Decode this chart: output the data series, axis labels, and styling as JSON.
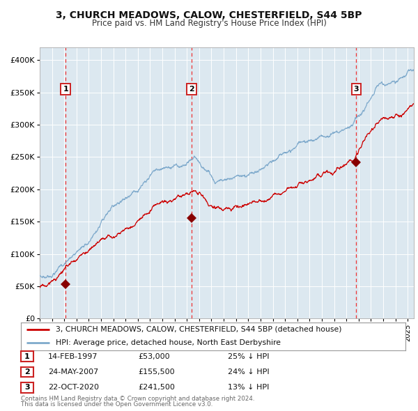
{
  "title1": "3, CHURCH MEADOWS, CALOW, CHESTERFIELD, S44 5BP",
  "title2": "Price paid vs. HM Land Registry's House Price Index (HPI)",
  "bg_color": "#dce8f0",
  "grid_color": "#ffffff",
  "red_line_color": "#cc0000",
  "blue_line_color": "#7faacc",
  "sale_marker_color": "#880000",
  "vline_color": "#ee3333",
  "transactions": [
    {
      "date_num": 1997.12,
      "price": 53000,
      "label": "1"
    },
    {
      "date_num": 2007.39,
      "price": 155500,
      "label": "2"
    },
    {
      "date_num": 2020.81,
      "price": 241500,
      "label": "3"
    }
  ],
  "table_rows": [
    {
      "num": "1",
      "date": "14-FEB-1997",
      "price": "£53,000",
      "pct": "25% ↓ HPI"
    },
    {
      "num": "2",
      "date": "24-MAY-2007",
      "price": "£155,500",
      "pct": "24% ↓ HPI"
    },
    {
      "num": "3",
      "date": "22-OCT-2020",
      "price": "£241,500",
      "pct": "13% ↓ HPI"
    }
  ],
  "footer1": "Contains HM Land Registry data © Crown copyright and database right 2024.",
  "footer2": "This data is licensed under the Open Government Licence v3.0.",
  "legend_line1": "3, CHURCH MEADOWS, CALOW, CHESTERFIELD, S44 5BP (detached house)",
  "legend_line2": "HPI: Average price, detached house, North East Derbyshire",
  "ylim": [
    0,
    420000
  ],
  "xlim_start": 1995.0,
  "xlim_end": 2025.5,
  "yticks": [
    0,
    50000,
    100000,
    150000,
    200000,
    250000,
    300000,
    350000,
    400000
  ],
  "ytick_labels": [
    "£0",
    "£50K",
    "£100K",
    "£150K",
    "£200K",
    "£250K",
    "£300K",
    "£350K",
    "£400K"
  ]
}
